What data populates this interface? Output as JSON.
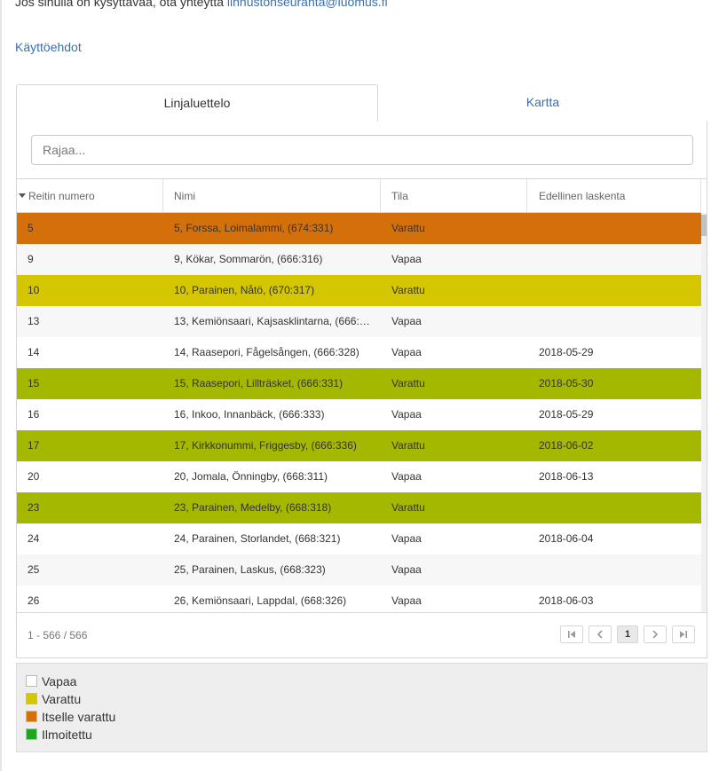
{
  "contact": {
    "text": "Jos sinulla on kysyttävää, ota yhteyttä",
    "email": "linnustonseuranta@luomus.fi"
  },
  "terms_link": "Käyttöehdot",
  "tabs": [
    {
      "label": "Linjaluettelo",
      "active": true
    },
    {
      "label": "Kartta",
      "active": false
    }
  ],
  "filter": {
    "placeholder": "Rajaa...",
    "value": ""
  },
  "columns": {
    "route_number": "Reitin numero",
    "name": "Nimi",
    "status": "Tila",
    "previous_count": "Edellinen laskenta"
  },
  "colors": {
    "free": "#ffffff",
    "free_alt": "#f7f7f7",
    "reserved": "#d4c600",
    "self_reserved": "#d4700a",
    "reported": "#a5b800",
    "legend_reported": "#1fa51f",
    "link": "#3d6fa8"
  },
  "rows": [
    {
      "num": "5",
      "name": "5, Forssa, Loimalammi, (674:331)",
      "status": "Varattu",
      "prev": "",
      "color": "#d4700a"
    },
    {
      "num": "9",
      "name": "9, Kökar, Sommarön, (666:316)",
      "status": "Vapaa",
      "prev": "",
      "color": "#f7f7f7"
    },
    {
      "num": "10",
      "name": "10, Parainen, Nåtö, (670:317)",
      "status": "Varattu",
      "prev": "",
      "color": "#d4c600"
    },
    {
      "num": "13",
      "name": "13, Kemiönsaari, Kajsasklintarna, (666:3…",
      "status": "Vapaa",
      "prev": "",
      "color": "#f7f7f7"
    },
    {
      "num": "14",
      "name": "14, Raasepori, Fågelsången, (666:328)",
      "status": "Vapaa",
      "prev": "2018-05-29",
      "color": "#ffffff"
    },
    {
      "num": "15",
      "name": "15, Raasepori, Lillträsket, (666:331)",
      "status": "Varattu",
      "prev": "2018-05-30",
      "color": "#a5b800"
    },
    {
      "num": "16",
      "name": "16, Inkoo, Innanbäck, (666:333)",
      "status": "Vapaa",
      "prev": "2018-05-29",
      "color": "#ffffff"
    },
    {
      "num": "17",
      "name": "17, Kirkkonummi, Friggesby, (666:336)",
      "status": "Varattu",
      "prev": "2018-06-02",
      "color": "#a5b800"
    },
    {
      "num": "20",
      "name": "20, Jomala, Önningby, (668:311)",
      "status": "Vapaa",
      "prev": "2018-06-13",
      "color": "#ffffff"
    },
    {
      "num": "23",
      "name": "23, Parainen, Medelby, (668:318)",
      "status": "Varattu",
      "prev": "",
      "color": "#a5b800"
    },
    {
      "num": "24",
      "name": "24, Parainen, Storlandet, (668:321)",
      "status": "Vapaa",
      "prev": "2018-06-04",
      "color": "#ffffff"
    },
    {
      "num": "25",
      "name": "25, Parainen, Laskus, (668:323)",
      "status": "Vapaa",
      "prev": "",
      "color": "#f7f7f7"
    },
    {
      "num": "26",
      "name": "26, Kemiönsaari, Lappdal, (668:326)",
      "status": "Vapaa",
      "prev": "2018-06-03",
      "color": "#ffffff"
    }
  ],
  "pager": {
    "info": "1 - 566 / 566",
    "current_page": "1",
    "first_icon": "first-page-icon",
    "prev_icon": "prev-page-icon",
    "next_icon": "next-page-icon",
    "last_icon": "last-page-icon"
  },
  "legend": [
    {
      "label": "Vapaa",
      "color": "#ffffff"
    },
    {
      "label": "Varattu",
      "color": "#d4c600"
    },
    {
      "label": "Itselle varattu",
      "color": "#d4700a"
    },
    {
      "label": "Ilmoitettu",
      "color": "#1fa51f"
    }
  ]
}
